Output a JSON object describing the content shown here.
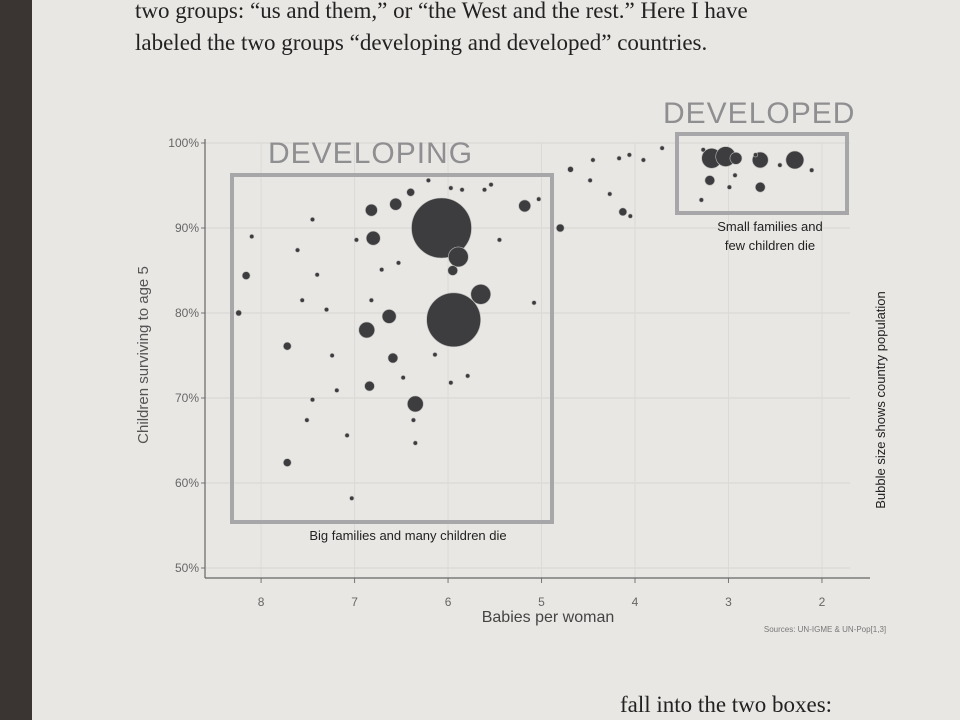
{
  "page": {
    "lines": [
      "two groups: “us and them,” or “the West and the rest.” Here I have",
      "labeled the two groups “developing and developed” countries."
    ],
    "footer_line": "fall into the two boxes:"
  },
  "chart_data": {
    "type": "bubble",
    "x_label": "Babies per woman",
    "y_label": "Children surviving to age 5",
    "annotations": [
      "DEVELOPING",
      "DEVELOPED",
      "Small families and",
      "few children die",
      "Big families and many children die",
      "Bubble size shows country population",
      "Sources: UN-IGME & UN-Pop[1,3]"
    ],
    "xlim": [
      8.6,
      1.7
    ],
    "xticks": [
      8,
      7,
      6,
      5,
      4,
      3,
      2
    ],
    "ylim": [
      50,
      100
    ],
    "yticks": [
      {
        "value": 50,
        "label": "50%"
      },
      {
        "value": 60,
        "label": "60%"
      },
      {
        "value": 70,
        "label": "70%"
      },
      {
        "value": 80,
        "label": "80%"
      },
      {
        "value": 90,
        "label": "90%"
      },
      {
        "value": 100,
        "label": "100%"
      }
    ],
    "grid": true,
    "color": "#3d3d3f",
    "x": [
      8.24,
      8.16,
      8.1,
      7.72,
      7.72,
      7.61,
      7.56,
      7.45,
      7.4,
      7.51,
      7.45,
      7.24,
      7.3,
      7.19,
      7.08,
      7.03,
      6.98,
      6.92,
      6.87,
      6.82,
      6.8,
      6.84,
      6.82,
      6.71,
      6.63,
      6.59,
      6.56,
      6.53,
      6.48,
      6.4,
      6.35,
      6.37,
      6.35,
      6.21,
      6.14,
      6.07,
      5.94,
      5.89,
      5.65,
      5.95,
      5.97,
      5.85,
      5.97,
      5.79,
      5.54,
      5.61,
      5.45,
      5.18,
      5.08,
      5.03,
      4.8,
      4.69,
      4.48,
      4.45,
      4.27,
      4.13,
      4.17,
      4.06,
      3.91,
      4.05,
      3.71,
      3.27,
      3.18,
      3.03,
      2.92,
      3.2,
      3.29,
      2.99,
      2.93,
      2.66,
      2.66,
      2.71,
      2.29,
      2.11,
      2.45
    ],
    "values": [
      80,
      84.4,
      89,
      76.1,
      62.4,
      87.4,
      81.5,
      91,
      84.5,
      67.4,
      69.8,
      75,
      80.4,
      70.9,
      65.6,
      58.2,
      88.6,
      78,
      78,
      92.1,
      88.8,
      71.4,
      81.5,
      85.1,
      79.6,
      74.7,
      92.8,
      85.9,
      72.4,
      94.2,
      69.3,
      67.4,
      64.7,
      95.6,
      75.1,
      90,
      79.2,
      86.6,
      82.2,
      85,
      71.8,
      94.5,
      94.7,
      72.6,
      95.1,
      94.5,
      88.6,
      92.6,
      81.2,
      93.4,
      90,
      96.9,
      95.6,
      98,
      94,
      91.9,
      98.2,
      98.6,
      98,
      91.4,
      99.4,
      99.2,
      98.2,
      98.4,
      98.2,
      95.6,
      93.3,
      94.8,
      96.2,
      94.8,
      98,
      98.6,
      98,
      96.8,
      97.4
    ],
    "sizes": [
      6,
      11,
      3,
      11,
      11,
      3,
      3,
      3,
      3,
      3,
      3,
      3,
      3,
      3,
      3,
      3,
      3,
      3,
      44,
      25,
      34,
      17,
      3,
      3,
      34,
      17,
      25,
      3,
      3,
      11,
      44,
      3,
      3,
      3,
      3,
      625,
      506,
      69,
      69,
      17,
      3,
      3,
      3,
      3,
      3,
      3,
      3,
      25,
      3,
      3,
      11,
      6,
      3,
      3,
      3,
      11,
      3,
      3,
      3,
      3,
      3,
      3,
      69,
      69,
      25,
      17,
      3,
      3,
      3,
      17,
      44,
      3,
      56,
      3,
      3
    ]
  }
}
